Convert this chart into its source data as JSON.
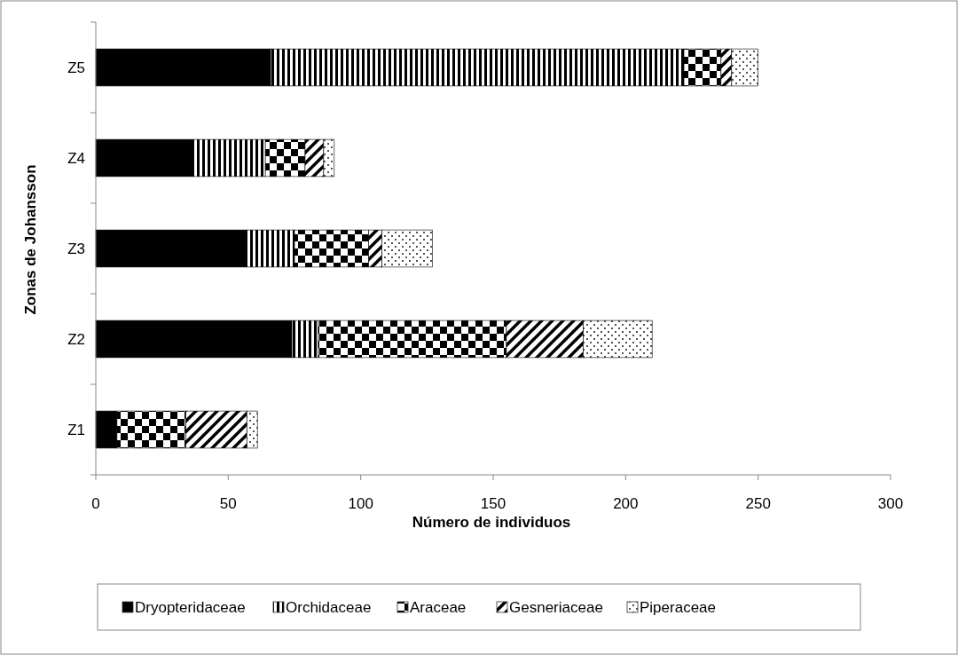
{
  "chart_data": {
    "type": "bar",
    "orientation": "horizontal",
    "stacked": true,
    "xlabel": "Número de individuos",
    "ylabel": "Zonas de Johansson",
    "categories": [
      "Z5",
      "Z4",
      "Z3",
      "Z2",
      "Z1"
    ],
    "series": [
      {
        "name": "Dryopteridaceae",
        "color": "#000000",
        "values": [
          66,
          37,
          57,
          74,
          8
        ]
      },
      {
        "name": "Orchidaceae",
        "color": "#000000",
        "values": [
          156,
          27,
          18,
          10,
          0
        ]
      },
      {
        "name": "Araceae",
        "color": "#000000",
        "values": [
          14,
          15,
          28,
          71,
          26
        ]
      },
      {
        "name": "Gesneriaceae",
        "color": "#000000",
        "values": [
          4,
          7,
          5,
          29,
          23
        ]
      },
      {
        "name": "Piperaceae",
        "color": "#000000",
        "values": [
          10,
          4,
          19,
          26,
          4
        ]
      }
    ],
    "xlim": [
      0,
      300
    ],
    "xticks": [
      0,
      50,
      100,
      150,
      200,
      250,
      300
    ],
    "grid": false,
    "legend": "bottom"
  }
}
